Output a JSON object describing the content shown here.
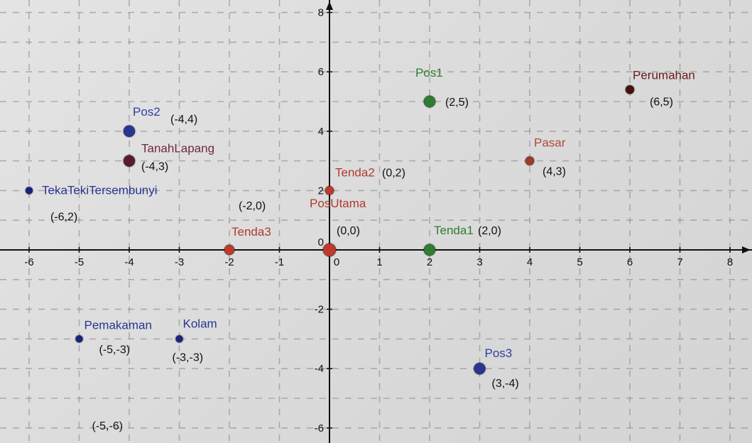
{
  "chart_data": {
    "type": "scatter",
    "title": "",
    "xlabel": "",
    "ylabel": "",
    "xlim": [
      -6.4,
      8.3
    ],
    "ylim": [
      -6.4,
      8.3
    ],
    "grid": true,
    "x_ticks": [
      -6,
      -5,
      -4,
      -3,
      -2,
      -1,
      0,
      1,
      2,
      3,
      4,
      5,
      6,
      7,
      8
    ],
    "y_ticks": [
      8,
      6,
      4,
      2,
      0,
      -2,
      -4,
      -6
    ],
    "x_tick_labels": [
      "-6",
      "-5",
      "-4",
      "-3",
      "-2",
      "-1",
      "0",
      "1",
      "2",
      "3",
      "4",
      "5",
      "6",
      "7",
      "8"
    ],
    "y_tick_labels": [
      "8",
      "6",
      "4",
      "2",
      "0",
      "-2",
      "-4",
      "-6"
    ],
    "points": [
      {
        "name": "Pos1",
        "x": 2,
        "y": 5,
        "coord_label": "(2,5)",
        "color": "#2e7d32",
        "label_color": "#2e7d32",
        "r": 8
      },
      {
        "name": "Perumahan",
        "x": 6,
        "y": 5.4,
        "coord_label": "(6,5)",
        "color": "#4a1010",
        "label_color": "#6b1a1a",
        "r": 6
      },
      {
        "name": "Pos2",
        "x": -4,
        "y": 4,
        "coord_label": "(-4,4)",
        "color": "#283593",
        "label_color": "#303f9f",
        "r": 8
      },
      {
        "name": "TanahLapang",
        "x": -4,
        "y": 3,
        "coord_label": "(-4,3)",
        "color": "#5c1a2a",
        "label_color": "#6d2a3a",
        "r": 8
      },
      {
        "name": "Pasar",
        "x": 4,
        "y": 3,
        "coord_label": "(4,3)",
        "color": "#a03a2a",
        "label_color": "#b04a3a",
        "r": 6
      },
      {
        "name": "TekaTekiTersembunyi",
        "x": -6,
        "y": 2,
        "coord_label": "(-6,2)",
        "color": "#1a237e",
        "label_color": "#283593",
        "r": 5
      },
      {
        "name": "Tenda2",
        "x": 0,
        "y": 2,
        "coord_label": "(0,2)",
        "color": "#c0392b",
        "label_color": "#b03a2e",
        "r": 6
      },
      {
        "name": "PosUtama",
        "x": 0,
        "y": 0,
        "coord_label": "(0,0)",
        "color": "#c0392b",
        "label_color": "#b03a2e",
        "r": 9
      },
      {
        "name": "Tenda3",
        "x": -2,
        "y": 0,
        "coord_label": "(-2,0)",
        "color": "#c0392b",
        "label_color": "#b03a2e",
        "r": 7
      },
      {
        "name": "Tenda1",
        "x": 2,
        "y": 0,
        "coord_label": "(2,0)",
        "color": "#2e7d32",
        "label_color": "#2e7d32",
        "r": 8
      },
      {
        "name": "Pemakaman",
        "x": -5,
        "y": -3,
        "coord_label": "(-5,-3)",
        "color": "#1a237e",
        "label_color": "#283593",
        "r": 5
      },
      {
        "name": "Kolam",
        "x": -3,
        "y": -3,
        "coord_label": "(-3,-3)",
        "color": "#1a237e",
        "label_color": "#283593",
        "r": 5
      },
      {
        "name": "Pos3",
        "x": 3,
        "y": -4,
        "coord_label": "(3,-4)",
        "color": "#283593",
        "label_color": "#303f9f",
        "r": 8
      }
    ],
    "extra_labels": [
      {
        "text": "(-5,-6)",
        "x": -5,
        "y": -6
      }
    ]
  }
}
